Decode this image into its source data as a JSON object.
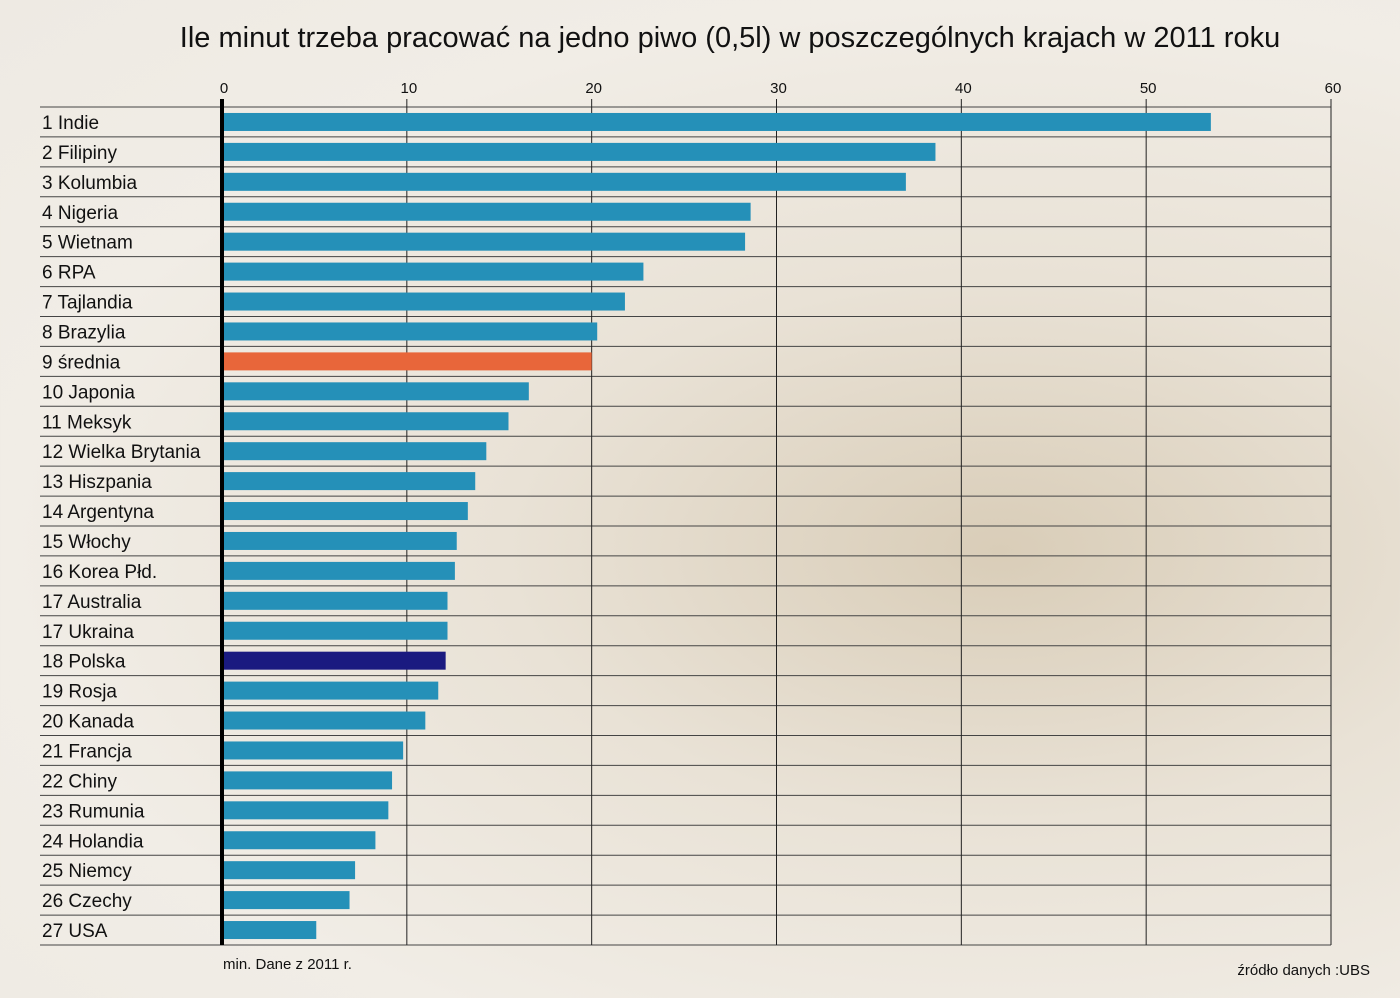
{
  "chart_data": {
    "type": "bar",
    "orientation": "horizontal",
    "title": "Ile minut trzeba pracować na jedno piwo (0,5l) w poszczególnych krajach w 2011 roku",
    "xlim": [
      0,
      60
    ],
    "xticks": [
      0,
      10,
      20,
      30,
      40,
      50,
      60
    ],
    "categories": [
      "1 Indie",
      "2 Filipiny",
      "3 Kolumbia",
      "4 Nigeria",
      "5 Wietnam",
      "6 RPA",
      "7 Tajlandia",
      "8 Brazylia",
      "9 średnia",
      "10 Japonia",
      "11 Meksyk",
      "12 Wielka Brytania",
      "13 Hiszpania",
      "14 Argentyna",
      "15 Włochy",
      "16 Korea Płd.",
      "17 Australia",
      "17 Ukraina",
      "18 Polska",
      "19 Rosja",
      "20 Kanada",
      "21 Francja",
      "22 Chiny",
      "23 Rumunia",
      "24 Holandia",
      "25 Niemcy",
      "26 Czechy",
      "27 USA"
    ],
    "values": [
      53.5,
      38.6,
      37.0,
      28.6,
      28.3,
      22.8,
      21.8,
      20.3,
      20.0,
      16.6,
      15.5,
      14.3,
      13.7,
      13.3,
      12.7,
      12.6,
      12.2,
      12.2,
      12.1,
      11.7,
      11.0,
      9.8,
      9.2,
      9.0,
      8.3,
      7.2,
      6.9,
      5.1
    ],
    "colors": {
      "default": "#2590b8",
      "średnia": "#e8663a",
      "Polska": "#1a1a80"
    },
    "xlabel": "min. Dane z 2011 r.",
    "source": "źródło danych :UBS",
    "grid": true
  }
}
